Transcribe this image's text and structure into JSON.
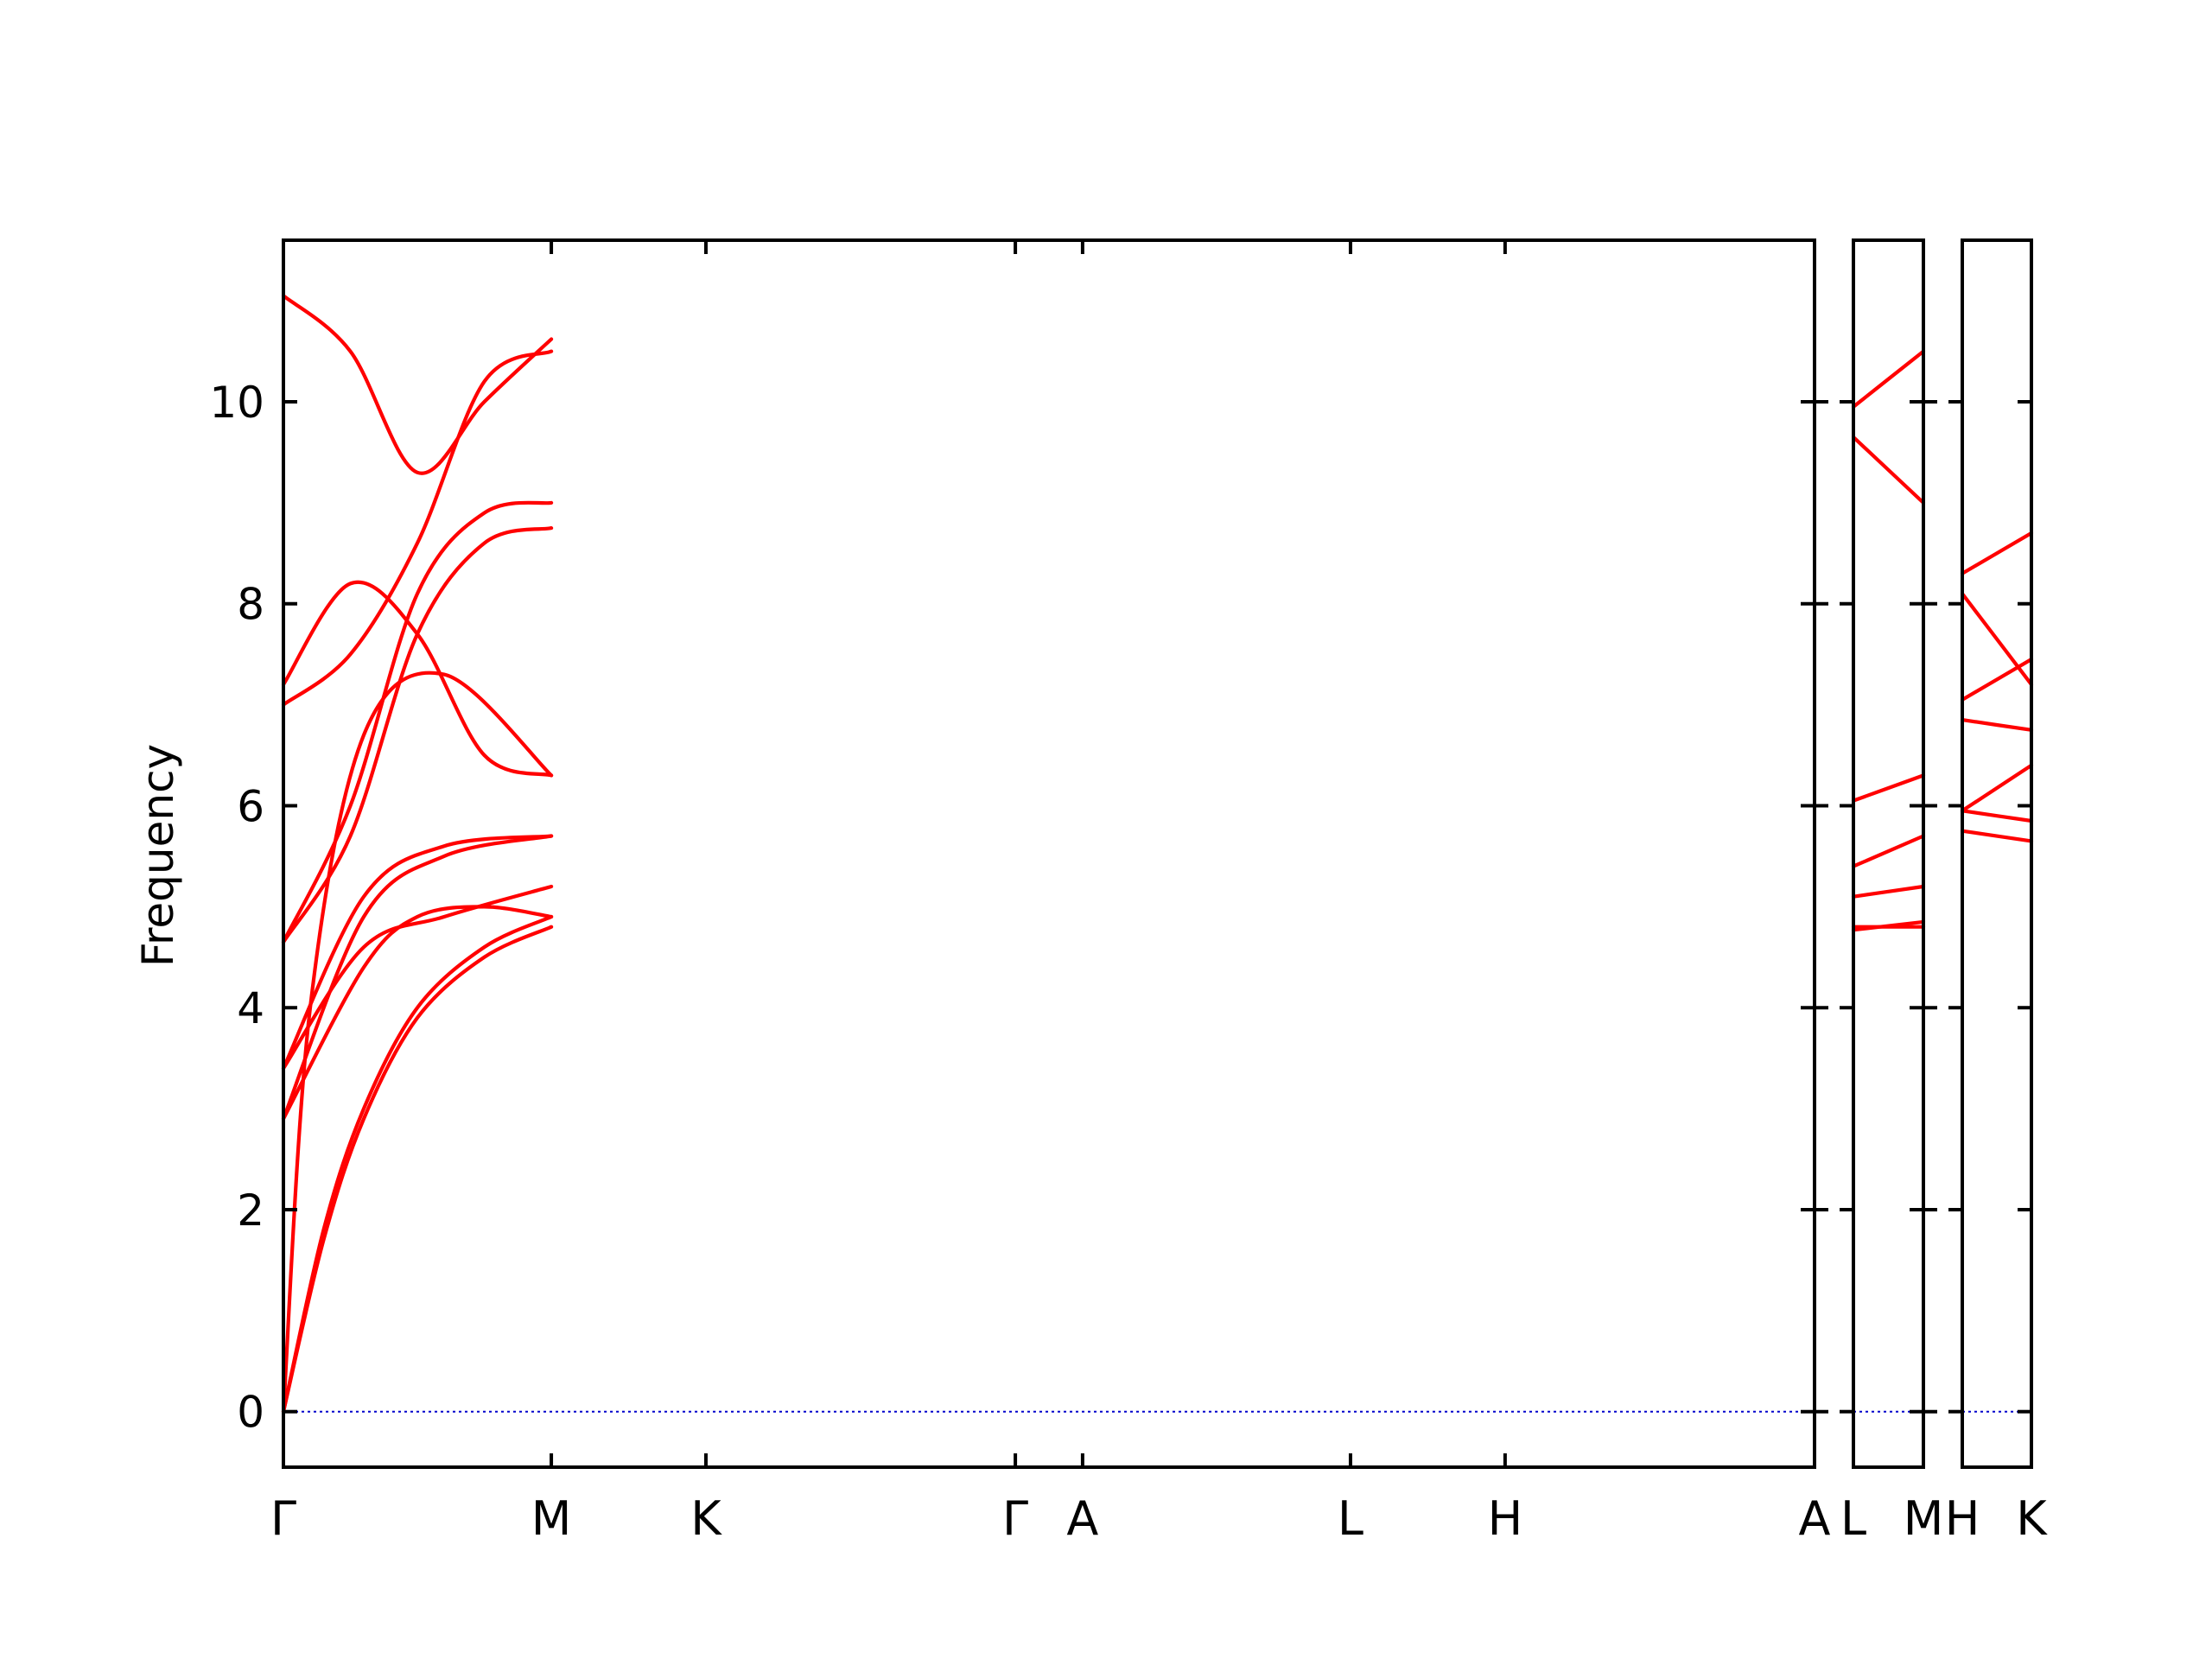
{
  "chart_data": {
    "type": "line",
    "title": "",
    "xlabel": "",
    "ylabel": "Frequency",
    "ylim": [
      -0.55,
      11.6
    ],
    "yticks": [
      0,
      2,
      4,
      6,
      8,
      10
    ],
    "grid": false,
    "legend": "none",
    "colors": {
      "bands": "#ff0000",
      "zero_line": "#0000cc",
      "axes": "#000000"
    },
    "panels": [
      {
        "name": "main",
        "path_labels": [
          "Γ",
          "M",
          "K",
          "Γ",
          "A",
          "L",
          "H",
          "A"
        ],
        "path_positions": [
          0,
          1,
          1.577,
          2.732,
          2.983,
          3.983,
          4.56,
          5.715
        ],
        "bands": [
          {
            "x": [
              0,
              0.15,
              0.3,
              0.5,
              0.75,
              1
            ],
            "y": [
              0,
              1.7,
              2.9,
              3.9,
              4.5,
              4.8
            ]
          },
          {
            "x": [
              0,
              0.15,
              0.3,
              0.5,
              0.75,
              1
            ],
            "y": [
              0,
              1.8,
              3.0,
              4.0,
              4.6,
              4.9
            ]
          },
          {
            "x": [
              0,
              0.3,
              0.5,
              0.75,
              1
            ],
            "y": [
              2.9,
              4.4,
              4.9,
              5.0,
              4.9
            ]
          },
          {
            "x": [
              0,
              0.1,
              0.3,
              0.6,
              1
            ],
            "y": [
              0,
              4.0,
              6.7,
              7.3,
              6.3
            ]
          },
          {
            "x": [
              0,
              0.3,
              0.6,
              1
            ],
            "y": [
              2.9,
              4.9,
              5.5,
              5.7
            ]
          },
          {
            "x": [
              0,
              0.3,
              0.6,
              1
            ],
            "y": [
              3.4,
              5.1,
              5.6,
              5.7
            ]
          },
          {
            "x": [
              0,
              0.3,
              0.6,
              1
            ],
            "y": [
              3.4,
              4.6,
              4.9,
              5.2
            ]
          },
          {
            "x": [
              0,
              0.25,
              0.5,
              0.75,
              1
            ],
            "y": [
              4.65,
              5.7,
              7.7,
              8.6,
              8.75
            ]
          },
          {
            "x": [
              0,
              0.25,
              0.5,
              0.75,
              1
            ],
            "y": [
              4.65,
              6.0,
              8.1,
              8.9,
              9.0
            ]
          },
          {
            "x": [
              0,
              0.25,
              0.5,
              0.75,
              1
            ],
            "y": [
              7.0,
              7.5,
              8.6,
              10.2,
              10.5
            ]
          },
          {
            "x": [
              0,
              0.25,
              0.5,
              0.75,
              1
            ],
            "y": [
              7.2,
              8.2,
              7.7,
              6.5,
              6.3
            ]
          },
          {
            "x": [
              0,
              0.25,
              0.5,
              0.75,
              1
            ],
            "y": [
              11.05,
              10.5,
              9.3,
              10.0,
              10.62
            ]
          }
        ]
      },
      {
        "name": "L-M",
        "path_labels": [
          "L",
          "M"
        ],
        "path_positions": [
          0,
          1
        ],
        "bands": [
          {
            "x": [
              0,
              1
            ],
            "y": [
              4.77,
              4.85
            ]
          },
          {
            "x": [
              0,
              1
            ],
            "y": [
              4.8,
              4.8
            ]
          },
          {
            "x": [
              0,
              1
            ],
            "y": [
              5.1,
              5.2
            ]
          },
          {
            "x": [
              0,
              1
            ],
            "y": [
              5.4,
              5.7
            ]
          },
          {
            "x": [
              0,
              1
            ],
            "y": [
              6.05,
              6.3
            ]
          },
          {
            "x": [
              0,
              1
            ],
            "y": [
              9.65,
              9.0
            ]
          },
          {
            "x": [
              0,
              1
            ],
            "y": [
              9.95,
              10.5
            ]
          }
        ]
      },
      {
        "name": "H-K",
        "path_labels": [
          "H",
          "K"
        ],
        "path_positions": [
          0,
          1
        ],
        "bands": [
          {
            "x": [
              0,
              1
            ],
            "y": [
              5.75,
              5.65
            ]
          },
          {
            "x": [
              0,
              1
            ],
            "y": [
              5.95,
              5.85
            ]
          },
          {
            "x": [
              0,
              1
            ],
            "y": [
              5.95,
              6.4
            ]
          },
          {
            "x": [
              0,
              1
            ],
            "y": [
              6.85,
              6.75
            ]
          },
          {
            "x": [
              0,
              1
            ],
            "y": [
              7.05,
              7.45
            ]
          },
          {
            "x": [
              0,
              1
            ],
            "y": [
              8.1,
              7.2
            ]
          },
          {
            "x": [
              0,
              1
            ],
            "y": [
              8.3,
              8.7
            ]
          }
        ]
      }
    ]
  }
}
